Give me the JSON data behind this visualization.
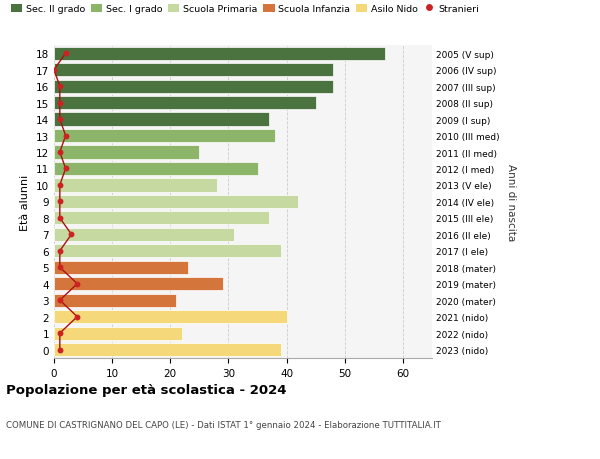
{
  "ages": [
    0,
    1,
    2,
    3,
    4,
    5,
    6,
    7,
    8,
    9,
    10,
    11,
    12,
    13,
    14,
    15,
    16,
    17,
    18
  ],
  "values": [
    39,
    22,
    40,
    21,
    29,
    23,
    39,
    31,
    37,
    42,
    28,
    35,
    25,
    38,
    37,
    45,
    48,
    48,
    57
  ],
  "right_labels": [
    "2023 (nido)",
    "2022 (nido)",
    "2021 (nido)",
    "2020 (mater)",
    "2019 (mater)",
    "2018 (mater)",
    "2017 (I ele)",
    "2016 (II ele)",
    "2015 (III ele)",
    "2014 (IV ele)",
    "2013 (V ele)",
    "2012 (I med)",
    "2011 (II med)",
    "2010 (III med)",
    "2009 (I sup)",
    "2008 (II sup)",
    "2007 (III sup)",
    "2006 (IV sup)",
    "2005 (V sup)"
  ],
  "bar_colors": [
    "#f5d87a",
    "#f5d87a",
    "#f5d87a",
    "#d4763b",
    "#d4763b",
    "#d4763b",
    "#c5d9a0",
    "#c5d9a0",
    "#c5d9a0",
    "#c5d9a0",
    "#c5d9a0",
    "#8db56a",
    "#8db56a",
    "#8db56a",
    "#4a7340",
    "#4a7340",
    "#4a7340",
    "#4a7340",
    "#4a7340"
  ],
  "stranieri": [
    1,
    1,
    4,
    1,
    4,
    1,
    1,
    3,
    1,
    1,
    1,
    2,
    1,
    2,
    1,
    1,
    1,
    0,
    2
  ],
  "legend_labels": [
    "Sec. II grado",
    "Sec. I grado",
    "Scuola Primaria",
    "Scuola Infanzia",
    "Asilo Nido",
    "Stranieri"
  ],
  "legend_colors": [
    "#4a7340",
    "#8db56a",
    "#c5d9a0",
    "#d4763b",
    "#f5d87a",
    "#cc2222"
  ],
  "title": "Popolazione per età scolastica - 2024",
  "subtitle": "COMUNE DI CASTRIGNANO DEL CAPO (LE) - Dati ISTAT 1° gennaio 2024 - Elaborazione TUTTITALIA.IT",
  "ylabel_left": "Età alunni",
  "ylabel_right": "Anni di nascita",
  "xlim": [
    0,
    65
  ],
  "background_color": "#ffffff",
  "grid_color": "#cccccc",
  "ax_facecolor": "#f5f5f5"
}
